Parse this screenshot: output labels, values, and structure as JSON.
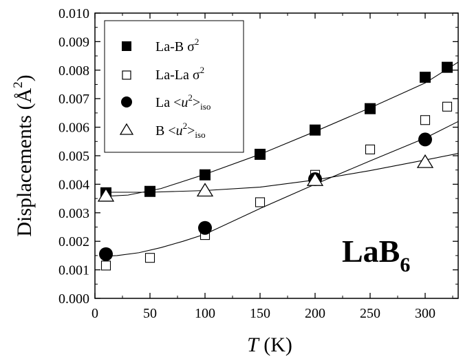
{
  "chart_data": {
    "type": "scatter",
    "xlabel": {
      "italic": "T",
      "unit": " (K)"
    },
    "ylabel": {
      "text": "Displacements (",
      "unit": "Å",
      "power": "2",
      "close": ")"
    },
    "xlim": [
      0,
      330
    ],
    "ylim": [
      0.0,
      0.01
    ],
    "xticks": [
      0,
      50,
      100,
      150,
      200,
      250,
      300
    ],
    "xtick_labels": [
      "0",
      "50",
      "100",
      "150",
      "200",
      "250",
      "300"
    ],
    "yticks": [
      0.0,
      0.001,
      0.002,
      0.003,
      0.004,
      0.005,
      0.006,
      0.007,
      0.008,
      0.009,
      0.01
    ],
    "ytick_labels": [
      "0.000",
      "0.001",
      "0.002",
      "0.003",
      "0.004",
      "0.005",
      "0.006",
      "0.007",
      "0.008",
      "0.009",
      "0.010"
    ],
    "grid": false,
    "legend_position": "top-left",
    "annotation": {
      "main": "LaB",
      "sub": "6"
    },
    "series": [
      {
        "name": "La-B σ2",
        "label_main": "La-B σ",
        "label_sup": "2",
        "marker": "filled-square",
        "x": [
          10,
          50,
          100,
          150,
          200,
          250,
          300,
          320
        ],
        "y": [
          0.0037,
          0.00375,
          0.00433,
          0.00505,
          0.0059,
          0.00665,
          0.00775,
          0.0081
        ]
      },
      {
        "name": "La-La σ2",
        "label_main": "La-La σ",
        "label_sup": "2",
        "marker": "open-square",
        "x": [
          10,
          50,
          100,
          150,
          200,
          250,
          300,
          320
        ],
        "y": [
          0.00115,
          0.00142,
          0.00222,
          0.00337,
          0.00433,
          0.00522,
          0.00625,
          0.00672
        ]
      },
      {
        "name": "La <u2>iso",
        "label_main": "La <",
        "label_italic": "u",
        "label_sup": "2",
        "label_close": ">",
        "label_sub": "iso",
        "marker": "filled-circle",
        "x": [
          10,
          100,
          200,
          300
        ],
        "y": [
          0.00155,
          0.00247,
          0.00418,
          0.00557
        ]
      },
      {
        "name": "B <u2>iso",
        "label_main": "B <",
        "label_italic": "u",
        "label_sup": "2",
        "label_close": ">",
        "label_sub": "iso",
        "marker": "open-triangle",
        "x": [
          10,
          100,
          200,
          300
        ],
        "y": [
          0.0036,
          0.00378,
          0.00415,
          0.00478
        ]
      }
    ],
    "fit_curves": [
      {
        "for": "La-B σ2",
        "x": [
          10,
          30,
          60,
          100,
          150,
          200,
          250,
          300,
          330
        ],
        "y": [
          0.00358,
          0.00362,
          0.00385,
          0.00435,
          0.00505,
          0.00585,
          0.00668,
          0.00755,
          0.00828
        ]
      },
      {
        "for": "La <u2>iso",
        "x": [
          10,
          20,
          40,
          60,
          80,
          100,
          150,
          200,
          250,
          300,
          330
        ],
        "y": [
          0.00148,
          0.0015,
          0.0016,
          0.00178,
          0.002,
          0.00225,
          0.00315,
          0.004,
          0.00482,
          0.00562,
          0.0062
        ]
      },
      {
        "for": "B <u2>iso",
        "x": [
          10,
          50,
          100,
          150,
          200,
          250,
          300,
          330
        ],
        "y": [
          0.00372,
          0.00372,
          0.00378,
          0.0039,
          0.00415,
          0.00448,
          0.00485,
          0.00508
        ]
      }
    ]
  }
}
